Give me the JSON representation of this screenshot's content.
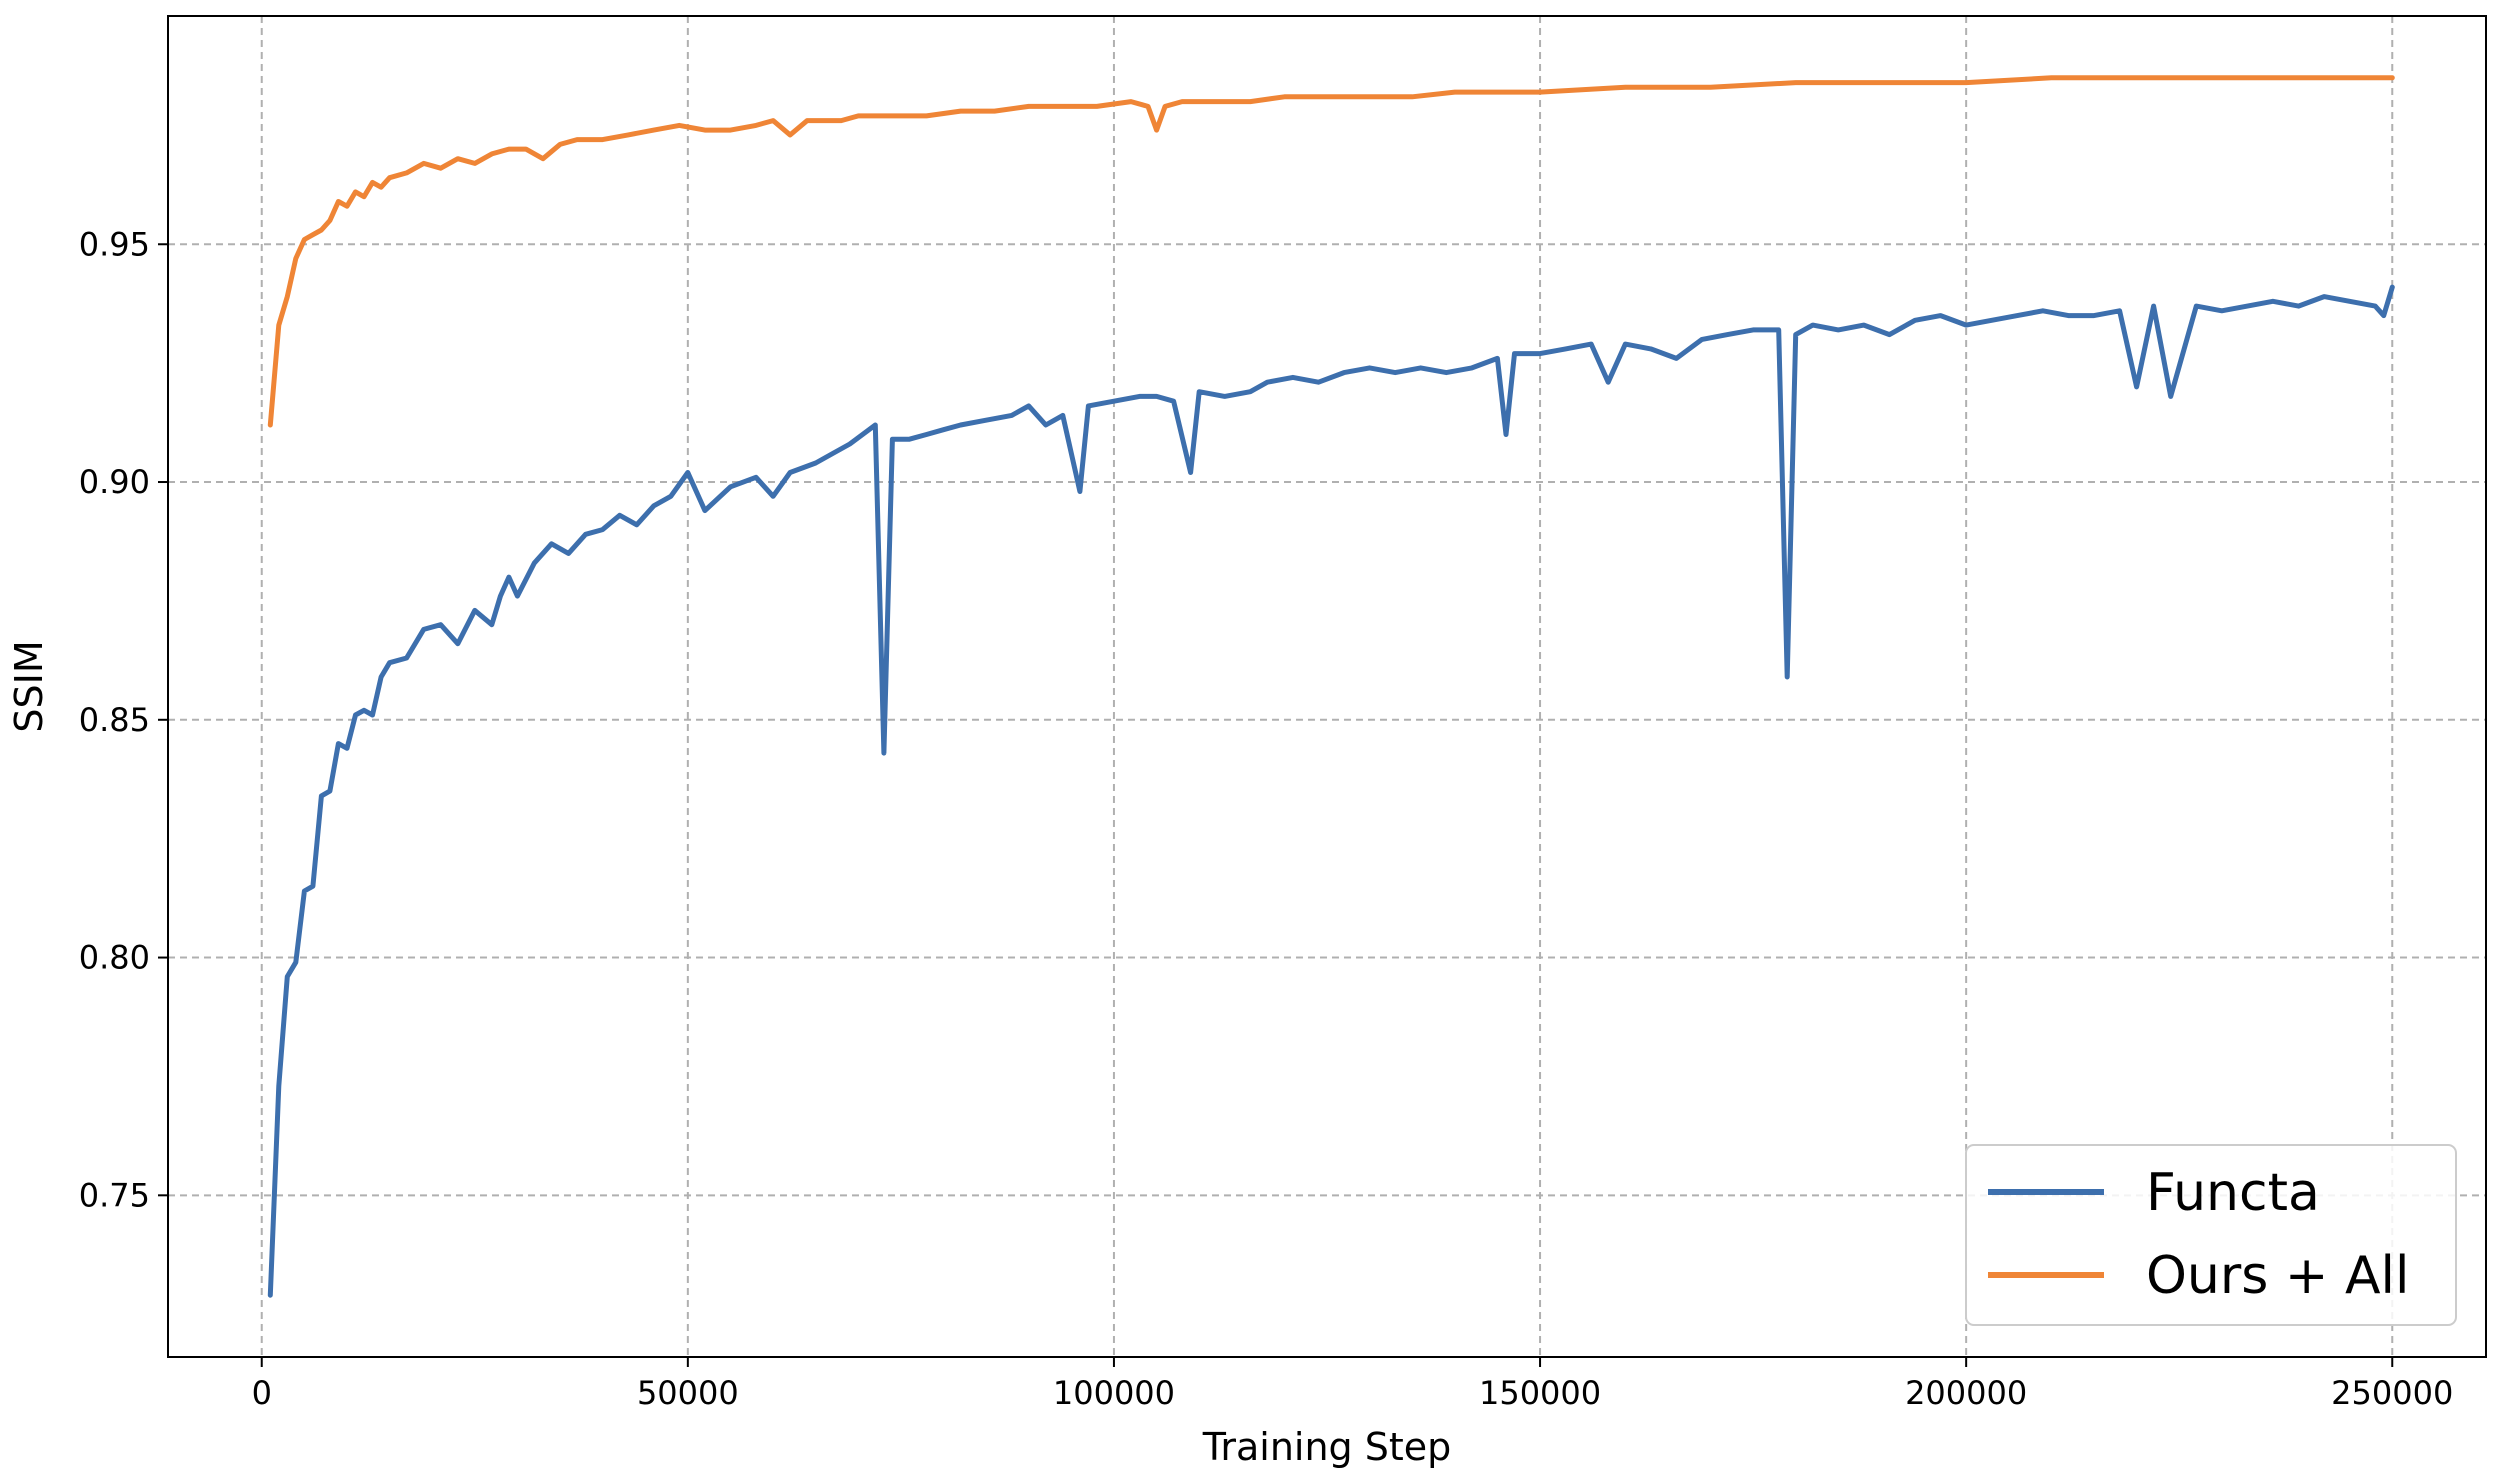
{
  "chart_data": {
    "type": "line",
    "xlabel": "Training Step",
    "ylabel": "SSIM",
    "xlim": [
      -11000,
      261000
    ],
    "ylim": [
      0.716,
      0.998
    ],
    "xticks": [
      0,
      50000,
      100000,
      150000,
      200000,
      250000
    ],
    "yticks": [
      0.75,
      0.8,
      0.85,
      0.9,
      0.95
    ],
    "xtick_labels": [
      "0",
      "50000",
      "100000",
      "150000",
      "200000",
      "250000"
    ],
    "ytick_labels": [
      "0.75",
      "0.80",
      "0.85",
      "0.90",
      "0.95"
    ],
    "grid": true,
    "legend_position": "bottom-right",
    "series": [
      {
        "name": "Functa",
        "color": "#3d6fad",
        "x": [
          1000,
          2000,
          3000,
          4000,
          5000,
          6000,
          7000,
          8000,
          9000,
          10000,
          11000,
          12000,
          13000,
          14000,
          15000,
          17000,
          19000,
          21000,
          23000,
          25000,
          27000,
          28000,
          29000,
          30000,
          32000,
          34000,
          36000,
          38000,
          40000,
          42000,
          44000,
          46000,
          48000,
          50000,
          52000,
          55000,
          58000,
          60000,
          62000,
          65000,
          67000,
          69000,
          72000,
          73000,
          74000,
          76000,
          78000,
          80000,
          82000,
          85000,
          88000,
          90000,
          92000,
          94000,
          96000,
          97000,
          100000,
          103000,
          105000,
          107000,
          109000,
          110000,
          113000,
          116000,
          118000,
          121000,
          124000,
          127000,
          130000,
          133000,
          136000,
          139000,
          142000,
          145000,
          146000,
          147000,
          150000,
          153000,
          156000,
          158000,
          160000,
          163000,
          166000,
          169000,
          172000,
          175000,
          178000,
          179000,
          180000,
          182000,
          185000,
          188000,
          191000,
          194000,
          197000,
          200000,
          203000,
          206000,
          209000,
          212000,
          215000,
          218000,
          220000,
          222000,
          224000,
          227000,
          230000,
          233000,
          236000,
          239000,
          242000,
          245000,
          248000,
          249000,
          250000
        ],
        "values": [
          0.729,
          0.773,
          0.796,
          0.799,
          0.814,
          0.815,
          0.834,
          0.835,
          0.845,
          0.844,
          0.851,
          0.852,
          0.851,
          0.859,
          0.862,
          0.863,
          0.869,
          0.87,
          0.866,
          0.873,
          0.87,
          0.876,
          0.88,
          0.876,
          0.883,
          0.887,
          0.885,
          0.889,
          0.89,
          0.893,
          0.891,
          0.895,
          0.897,
          0.902,
          0.894,
          0.899,
          0.901,
          0.897,
          0.902,
          0.904,
          0.906,
          0.908,
          0.912,
          0.843,
          0.909,
          0.909,
          0.91,
          0.911,
          0.912,
          0.913,
          0.914,
          0.916,
          0.912,
          0.914,
          0.898,
          0.916,
          0.917,
          0.918,
          0.918,
          0.917,
          0.902,
          0.919,
          0.918,
          0.919,
          0.921,
          0.922,
          0.921,
          0.923,
          0.924,
          0.923,
          0.924,
          0.923,
          0.924,
          0.926,
          0.91,
          0.927,
          0.927,
          0.928,
          0.929,
          0.921,
          0.929,
          0.928,
          0.926,
          0.93,
          0.931,
          0.932,
          0.932,
          0.859,
          0.931,
          0.933,
          0.932,
          0.933,
          0.931,
          0.934,
          0.935,
          0.933,
          0.934,
          0.935,
          0.936,
          0.935,
          0.935,
          0.936,
          0.92,
          0.937,
          0.918,
          0.937,
          0.936,
          0.937,
          0.938,
          0.937,
          0.939,
          0.938,
          0.937,
          0.935,
          0.941
        ]
      },
      {
        "name": "Ours + All",
        "color": "#ef8536",
        "x": [
          1000,
          2000,
          3000,
          4000,
          5000,
          6000,
          7000,
          8000,
          9000,
          10000,
          11000,
          12000,
          13000,
          14000,
          15000,
          17000,
          19000,
          21000,
          23000,
          25000,
          27000,
          29000,
          31000,
          33000,
          35000,
          37000,
          40000,
          43000,
          46000,
          49000,
          52000,
          55000,
          58000,
          60000,
          62000,
          64000,
          66000,
          68000,
          70000,
          74000,
          78000,
          82000,
          86000,
          90000,
          94000,
          98000,
          102000,
          104000,
          105000,
          106000,
          108000,
          112000,
          116000,
          120000,
          125000,
          130000,
          135000,
          140000,
          145000,
          150000,
          160000,
          170000,
          180000,
          190000,
          200000,
          210000,
          220000,
          230000,
          240000,
          250000
        ],
        "values": [
          0.912,
          0.933,
          0.939,
          0.947,
          0.951,
          0.952,
          0.953,
          0.955,
          0.959,
          0.958,
          0.961,
          0.96,
          0.963,
          0.962,
          0.964,
          0.965,
          0.967,
          0.966,
          0.968,
          0.967,
          0.969,
          0.97,
          0.97,
          0.968,
          0.971,
          0.972,
          0.972,
          0.973,
          0.974,
          0.975,
          0.974,
          0.974,
          0.975,
          0.976,
          0.973,
          0.976,
          0.976,
          0.976,
          0.977,
          0.977,
          0.977,
          0.978,
          0.978,
          0.979,
          0.979,
          0.979,
          0.98,
          0.979,
          0.974,
          0.979,
          0.98,
          0.98,
          0.98,
          0.981,
          0.981,
          0.981,
          0.981,
          0.982,
          0.982,
          0.982,
          0.983,
          0.983,
          0.984,
          0.984,
          0.984,
          0.985,
          0.985,
          0.985,
          0.985,
          0.985
        ]
      }
    ]
  }
}
